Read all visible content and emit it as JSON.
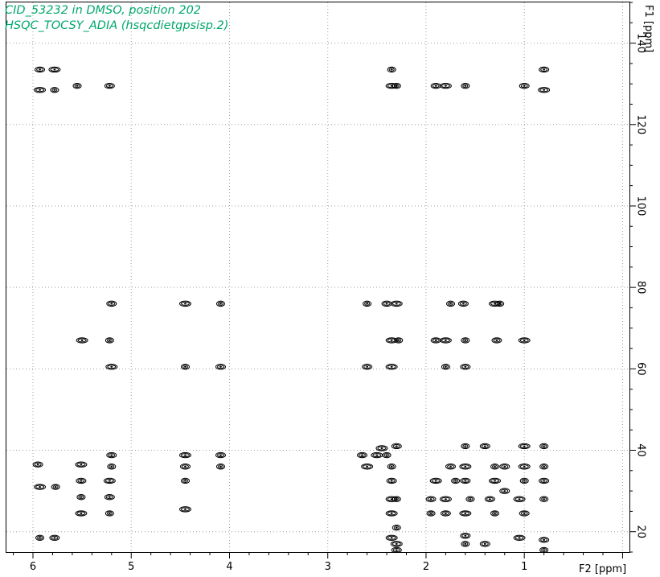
{
  "title_lines": [
    "CID_53232 in DMSO, position 202",
    "HSQC_TOCSY_ADIA (hsqcdietgpsisp.2)"
  ],
  "colors": {
    "title": "#00a86b",
    "contour": "#000000",
    "grid": "#a0a0a0"
  },
  "chart_data": {
    "type": "scatter",
    "x_axis_label": "F2 [ppm]",
    "y_axis_label": "F1 [ppm]",
    "xlim": [
      6.27,
      -0.07
    ],
    "ylim": [
      150,
      15
    ],
    "x_ticks": [
      6,
      5,
      4,
      3,
      2,
      1
    ],
    "y_ticks": [
      20,
      40,
      60,
      80,
      100,
      120,
      140
    ],
    "grid": true,
    "peaks": [
      [
        5.93,
        18.5
      ],
      [
        5.78,
        18.5
      ],
      [
        5.51,
        24.5
      ],
      [
        5.51,
        28.5
      ],
      [
        5.51,
        32.5
      ],
      [
        5.51,
        36.5
      ],
      [
        5.22,
        24.5
      ],
      [
        5.22,
        28.5
      ],
      [
        5.22,
        32.5
      ],
      [
        5.2,
        36
      ],
      [
        5.2,
        38.8
      ],
      [
        5.93,
        31
      ],
      [
        5.77,
        31
      ],
      [
        5.95,
        36.5
      ],
      [
        4.45,
        25.5
      ],
      [
        4.45,
        32.5
      ],
      [
        4.45,
        36
      ],
      [
        4.45,
        38.8
      ],
      [
        4.09,
        36
      ],
      [
        4.09,
        38.8
      ],
      [
        5.2,
        60.5
      ],
      [
        4.45,
        60.5
      ],
      [
        4.09,
        60.5
      ],
      [
        5.5,
        67
      ],
      [
        5.22,
        67
      ],
      [
        5.2,
        76
      ],
      [
        4.45,
        76
      ],
      [
        4.09,
        76
      ],
      [
        2.6,
        60.5
      ],
      [
        2.35,
        60.5
      ],
      [
        1.8,
        60.5
      ],
      [
        1.6,
        60.5
      ],
      [
        2.35,
        67
      ],
      [
        2.28,
        67
      ],
      [
        1.9,
        67
      ],
      [
        1.8,
        67
      ],
      [
        1.6,
        67
      ],
      [
        1.28,
        67
      ],
      [
        1.0,
        67
      ],
      [
        2.6,
        76
      ],
      [
        2.4,
        76
      ],
      [
        2.3,
        76
      ],
      [
        1.75,
        76
      ],
      [
        1.62,
        76
      ],
      [
        1.3,
        76
      ],
      [
        1.25,
        76
      ],
      [
        2.3,
        15.5
      ],
      [
        2.3,
        17
      ],
      [
        1.6,
        17
      ],
      [
        1.4,
        17
      ],
      [
        2.35,
        18.5
      ],
      [
        2.3,
        21
      ],
      [
        1.6,
        19
      ],
      [
        1.05,
        18.5
      ],
      [
        0.8,
        15.5
      ],
      [
        0.8,
        18
      ],
      [
        2.35,
        24.5
      ],
      [
        1.95,
        24.5
      ],
      [
        1.8,
        24.5
      ],
      [
        1.6,
        24.5
      ],
      [
        1.3,
        24.5
      ],
      [
        1.0,
        24.5
      ],
      [
        2.35,
        28
      ],
      [
        2.3,
        28
      ],
      [
        1.95,
        28
      ],
      [
        1.8,
        28
      ],
      [
        1.55,
        28
      ],
      [
        1.35,
        28
      ],
      [
        1.05,
        28
      ],
      [
        0.8,
        28
      ],
      [
        2.35,
        32.5
      ],
      [
        1.9,
        32.5
      ],
      [
        1.7,
        32.5
      ],
      [
        1.6,
        32.5
      ],
      [
        1.3,
        32.5
      ],
      [
        1.0,
        32.5
      ],
      [
        0.8,
        32.5
      ],
      [
        2.6,
        36
      ],
      [
        2.35,
        36
      ],
      [
        1.75,
        36
      ],
      [
        1.6,
        36
      ],
      [
        1.3,
        36
      ],
      [
        1.2,
        36
      ],
      [
        1.0,
        36
      ],
      [
        0.8,
        36
      ],
      [
        2.65,
        38.8
      ],
      [
        2.5,
        38.8
      ],
      [
        2.4,
        38.8
      ],
      [
        2.3,
        41
      ],
      [
        2.45,
        40.5
      ],
      [
        1.6,
        41
      ],
      [
        1.4,
        41
      ],
      [
        1.0,
        41
      ],
      [
        0.8,
        41
      ],
      [
        1.2,
        30
      ],
      [
        5.93,
        128.5
      ],
      [
        5.78,
        128.5
      ],
      [
        5.93,
        133.5
      ],
      [
        5.78,
        133.5
      ],
      [
        5.55,
        129.5
      ],
      [
        5.22,
        129.5
      ],
      [
        2.35,
        129.5
      ],
      [
        2.3,
        129.5
      ],
      [
        1.9,
        129.5
      ],
      [
        1.8,
        129.5
      ],
      [
        1.6,
        129.5
      ],
      [
        1.0,
        129.5
      ],
      [
        0.8,
        128.5
      ],
      [
        2.35,
        133.5
      ],
      [
        0.8,
        133.5
      ]
    ]
  }
}
